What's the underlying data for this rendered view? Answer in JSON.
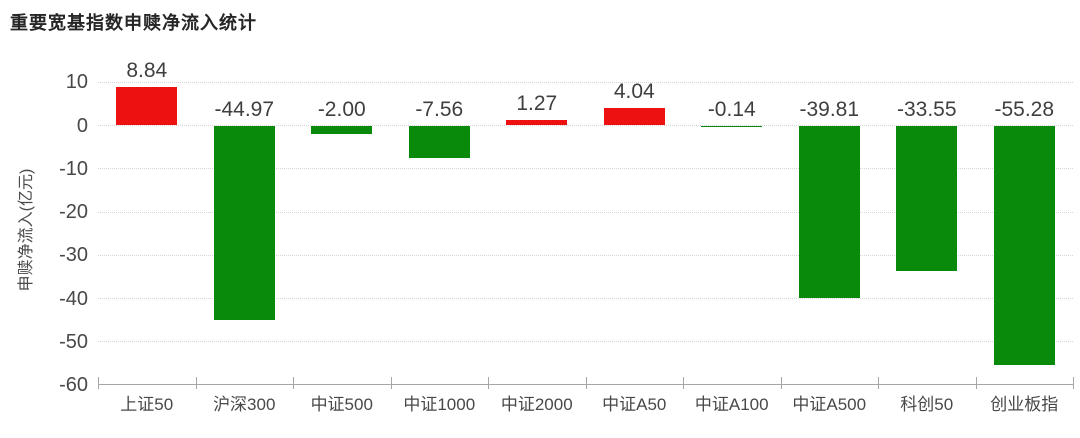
{
  "header": {
    "title": "重要宽基指数申赎净流入统计"
  },
  "chart_data": {
    "type": "bar",
    "title": "重要宽基指数申赎净流入统计",
    "xlabel": "",
    "ylabel": "申赎净流入(亿元)",
    "categories": [
      "上证50",
      "沪深300",
      "中证500",
      "中证1000",
      "中证2000",
      "中证A50",
      "中证A100",
      "中证A500",
      "科创50",
      "创业板指"
    ],
    "values": [
      8.84,
      -44.97,
      -2.0,
      -7.56,
      1.27,
      4.04,
      -0.14,
      -39.81,
      -33.55,
      -55.28
    ],
    "value_labels": [
      "8.84",
      "-44.97",
      "-2.00",
      "-7.56",
      "1.27",
      "4.04",
      "-0.14",
      "-39.81",
      "-33.55",
      "-55.28"
    ],
    "ylim": [
      -60,
      10
    ],
    "yticks": [
      10,
      0,
      -10,
      -20,
      -30,
      -40,
      -50,
      -60
    ],
    "grid": "horizontal-dotted",
    "legend": "none",
    "colors": {
      "positive": "#ee1111",
      "negative": "#0a8a0a",
      "grid": "#d6d6d6",
      "axis": "#a6a6a6",
      "text": "#484848",
      "title": "#262626"
    }
  }
}
